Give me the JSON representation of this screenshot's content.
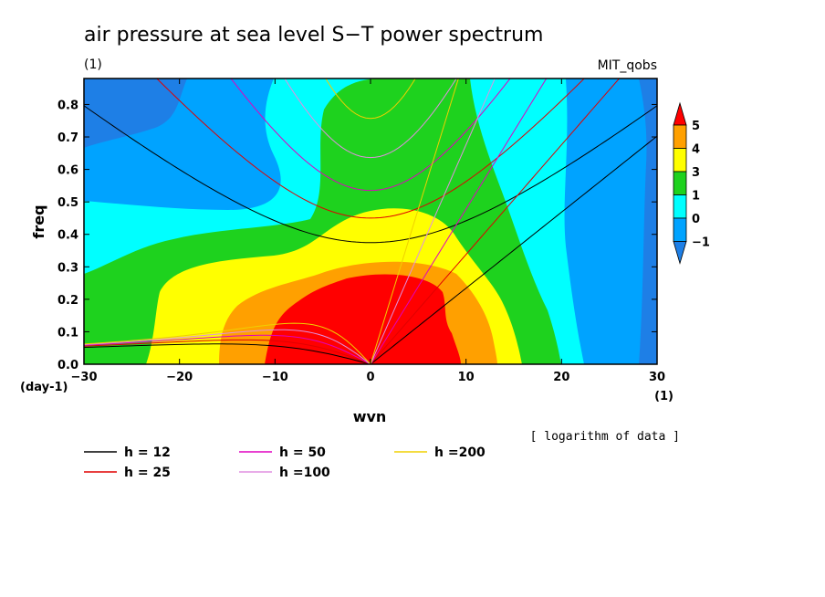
{
  "chart_data": {
    "type": "heatmap",
    "title": "air pressure at sea level S−T power spectrum",
    "units_label": "(1)",
    "model_label": "MIT_qobs",
    "xlabel": "wvn",
    "ylabel": "freq",
    "x_unit": "(1)",
    "y_unit": "(day-1)",
    "xlim": [
      -30,
      30
    ],
    "ylim": [
      0,
      0.88
    ],
    "x_ticks": [
      -30,
      -20,
      -10,
      0,
      10,
      20,
      30
    ],
    "x_tick_labels": [
      "−30",
      "−20",
      "−10",
      "0",
      "10",
      "20",
      "30"
    ],
    "y_ticks": [
      0,
      0.1,
      0.2,
      0.3,
      0.4,
      0.5,
      0.6,
      0.7,
      0.8
    ],
    "y_tick_labels": [
      "0.0",
      "0.1",
      "0.2",
      "0.3",
      "0.4",
      "0.5",
      "0.6",
      "0.7",
      "0.8"
    ],
    "note": "[ logarithm of data ]",
    "colorbar": {
      "levels": [
        -1,
        0,
        1,
        3,
        4,
        5
      ],
      "labels": [
        "−1",
        "0",
        "1",
        "3",
        "4",
        "5"
      ],
      "colors": [
        "#1e7fe6",
        "#00a3ff",
        "#00ffff",
        "#1ed21e",
        "#ffff00",
        "#ffa000",
        "#ff0000"
      ]
    },
    "dispersion_curves": [
      {
        "name": "h = 12",
        "h": 12,
        "color": "#000000"
      },
      {
        "name": "h = 25",
        "h": 25,
        "color": "#e00000"
      },
      {
        "name": "h = 50",
        "h": 50,
        "color": "#e000c0"
      },
      {
        "name": "h =100",
        "h": 100,
        "color": "#e090e0"
      },
      {
        "name": "h =200",
        "h": 200,
        "color": "#f0d000"
      }
    ]
  }
}
